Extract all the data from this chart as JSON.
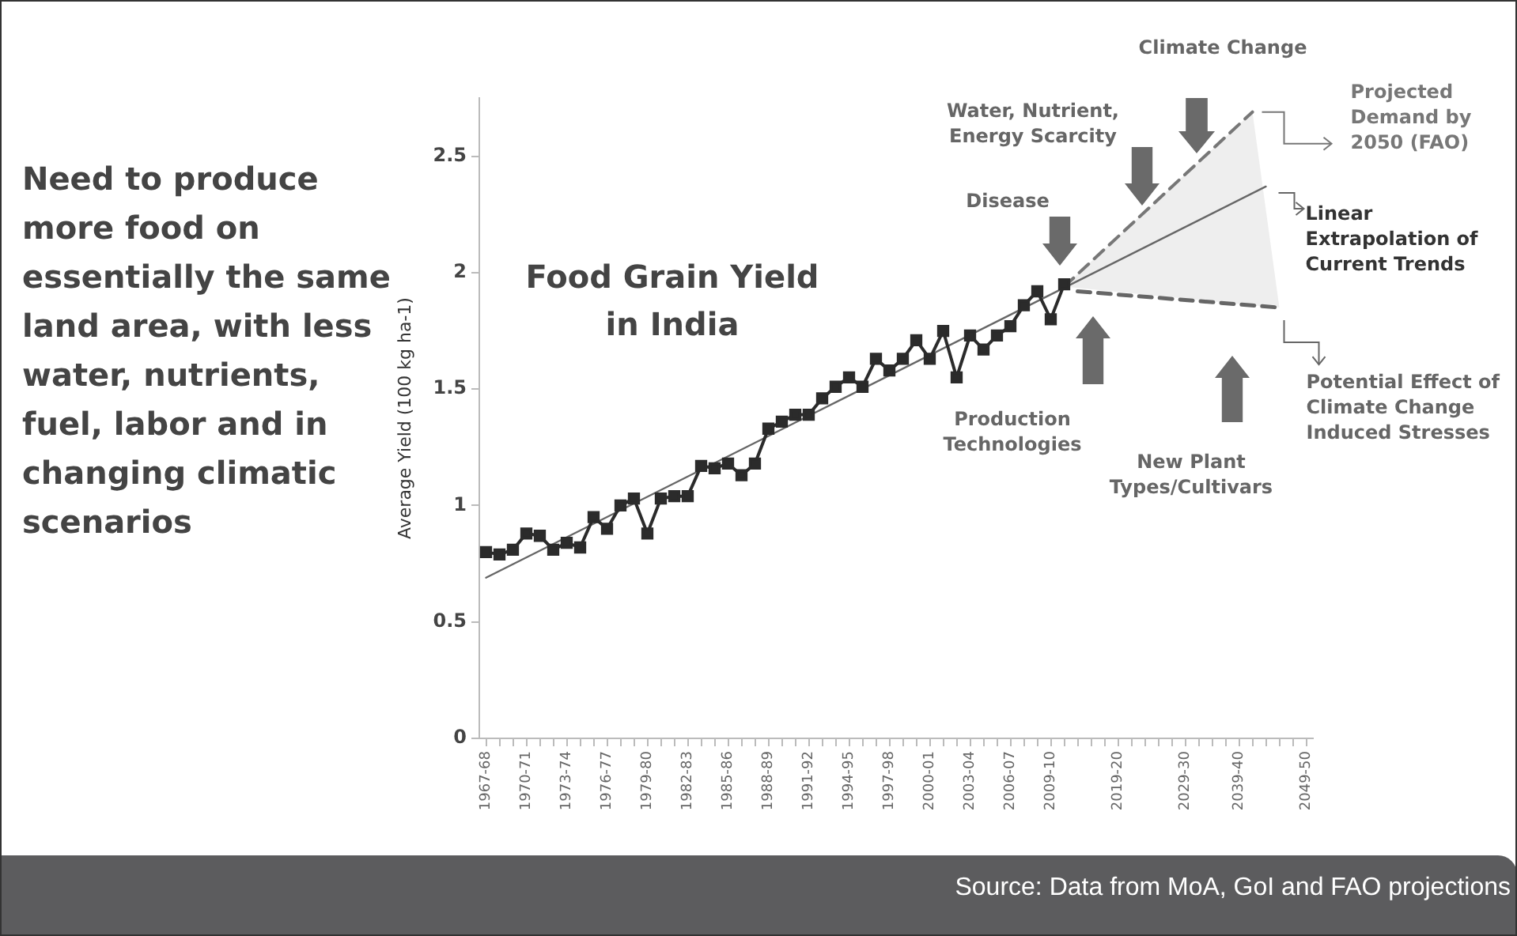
{
  "chart_data": {
    "type": "line",
    "title": "Food Grain Yield in India",
    "ylabel": "Average Yield (100 kg ha-1)",
    "categories": [
      "1967-68",
      null,
      null,
      "1970-71",
      null,
      null,
      "1973-74",
      null,
      null,
      "1976-77",
      null,
      null,
      "1979-80",
      null,
      null,
      "1982-83",
      null,
      null,
      "1985-86",
      null,
      null,
      "1988-89",
      null,
      null,
      "1991-92",
      null,
      null,
      "1994-95",
      null,
      null,
      "1997-98",
      null,
      null,
      "2000-01",
      null,
      null,
      "2003-04",
      null,
      null,
      "2006-07",
      null,
      null,
      "2009-10",
      null,
      null,
      null,
      null,
      "2019-20",
      null,
      null,
      null,
      null,
      "2029-30",
      null,
      null,
      null,
      "2039-40",
      null,
      null,
      null,
      null,
      "2049-50"
    ],
    "legend": "right",
    "ylim": [
      0,
      2.75
    ],
    "yticks": [
      0,
      0.5,
      1,
      1.5,
      2,
      2.5
    ],
    "series": [
      {
        "color": "#2b2b2b",
        "marker": "square",
        "line_style": "solid",
        "values": [
          0.8,
          0.79,
          0.81,
          0.88,
          0.87,
          0.81,
          0.84,
          0.82,
          0.95,
          0.9,
          1.0,
          1.03,
          0.88,
          1.03,
          1.04,
          1.04,
          1.17,
          1.16,
          1.18,
          1.13,
          1.18,
          1.33,
          1.36,
          1.39,
          1.39,
          1.46,
          1.51,
          1.55,
          1.51,
          1.63,
          1.58,
          1.63,
          1.71,
          1.63,
          1.75,
          1.55,
          1.73,
          1.67,
          1.73,
          1.77,
          1.86,
          1.92,
          1.8,
          1.95,
          null,
          null,
          null,
          null,
          null,
          null,
          null,
          null,
          null,
          null,
          null,
          null,
          null,
          null,
          null,
          null,
          null,
          null
        ]
      },
      {
        "name": "Linear Extrapolation of Current Trends",
        "color": "#666666",
        "marker": "none",
        "line_style": "solid",
        "values": [
          0.69,
          null,
          null,
          null,
          null,
          null,
          null,
          null,
          null,
          null,
          null,
          null,
          null,
          null,
          null,
          null,
          null,
          null,
          null,
          null,
          null,
          null,
          null,
          null,
          null,
          null,
          null,
          null,
          null,
          null,
          null,
          null,
          null,
          null,
          null,
          null,
          null,
          null,
          null,
          null,
          null,
          null,
          null,
          null,
          null,
          null,
          null,
          null,
          null,
          null,
          null,
          null,
          null,
          null,
          null,
          null,
          null,
          null,
          2.37,
          null,
          null,
          null
        ],
        "lower": [
          null,
          null,
          null,
          null,
          null,
          null,
          null,
          null,
          null,
          null,
          null,
          null,
          null,
          null,
          null,
          null,
          null,
          null,
          null,
          null,
          null,
          null,
          null,
          null,
          null,
          null,
          null,
          null,
          null,
          null,
          null,
          null,
          null,
          null,
          null,
          null,
          null,
          null,
          null,
          null,
          null,
          null,
          null,
          1.94,
          null,
          null,
          null,
          null,
          null,
          null,
          null,
          null,
          null,
          null,
          null,
          null,
          null,
          1.86,
          null,
          1.85,
          null,
          null
        ],
        "upper": [
          null,
          null,
          null,
          null,
          null,
          null,
          null,
          null,
          null,
          null,
          null,
          null,
          null,
          null,
          null,
          null,
          null,
          null,
          null,
          null,
          null,
          null,
          null,
          null,
          null,
          null,
          null,
          null,
          null,
          null,
          null,
          null,
          null,
          null,
          null,
          null,
          null,
          null,
          null,
          null,
          null,
          null,
          null,
          1.94,
          null,
          null,
          null,
          null,
          null,
          null,
          null,
          null,
          null,
          null,
          null,
          null,
          null,
          2.69,
          null,
          1.85,
          null,
          null
        ]
      },
      {
        "name": "Projected Demand by 2050 (FAO)",
        "color": "#777777",
        "marker": "none",
        "line_style": "dashed",
        "values": [
          null,
          null,
          null,
          null,
          null,
          null,
          null,
          null,
          null,
          null,
          null,
          null,
          null,
          null,
          null,
          null,
          null,
          null,
          null,
          null,
          null,
          null,
          null,
          null,
          null,
          null,
          null,
          null,
          null,
          null,
          null,
          null,
          null,
          null,
          null,
          null,
          null,
          null,
          null,
          null,
          null,
          null,
          null,
          1.94,
          null,
          null,
          null,
          null,
          null,
          null,
          null,
          null,
          null,
          null,
          null,
          null,
          null,
          2.69,
          null,
          null,
          null,
          null
        ]
      },
      {
        "name": "Potential Effect of Climate Change Induced Stresses",
        "color": "#666666",
        "marker": "none",
        "line_style": "dashed",
        "values": [
          null,
          null,
          null,
          null,
          null,
          null,
          null,
          null,
          null,
          null,
          null,
          null,
          null,
          null,
          null,
          null,
          null,
          null,
          null,
          null,
          null,
          null,
          null,
          null,
          null,
          null,
          null,
          null,
          null,
          null,
          null,
          null,
          null,
          null,
          null,
          null,
          null,
          null,
          null,
          null,
          null,
          null,
          null,
          null,
          1.92,
          null,
          null,
          null,
          null,
          null,
          null,
          null,
          null,
          null,
          null,
          null,
          null,
          null,
          null,
          1.85,
          null,
          null
        ]
      }
    ],
    "annotations": [
      "Need to produce more food on essentially the same land area, with less water, nutrients, fuel, labor and in changing climatic scenarios",
      "Disease",
      "Water, Nutrient, Energy Scarcity",
      "Climate Change",
      "Production Technologies",
      "New Plant Types/Cultivars",
      "Source: Data from MoA, GoI and FAO projections"
    ]
  }
}
